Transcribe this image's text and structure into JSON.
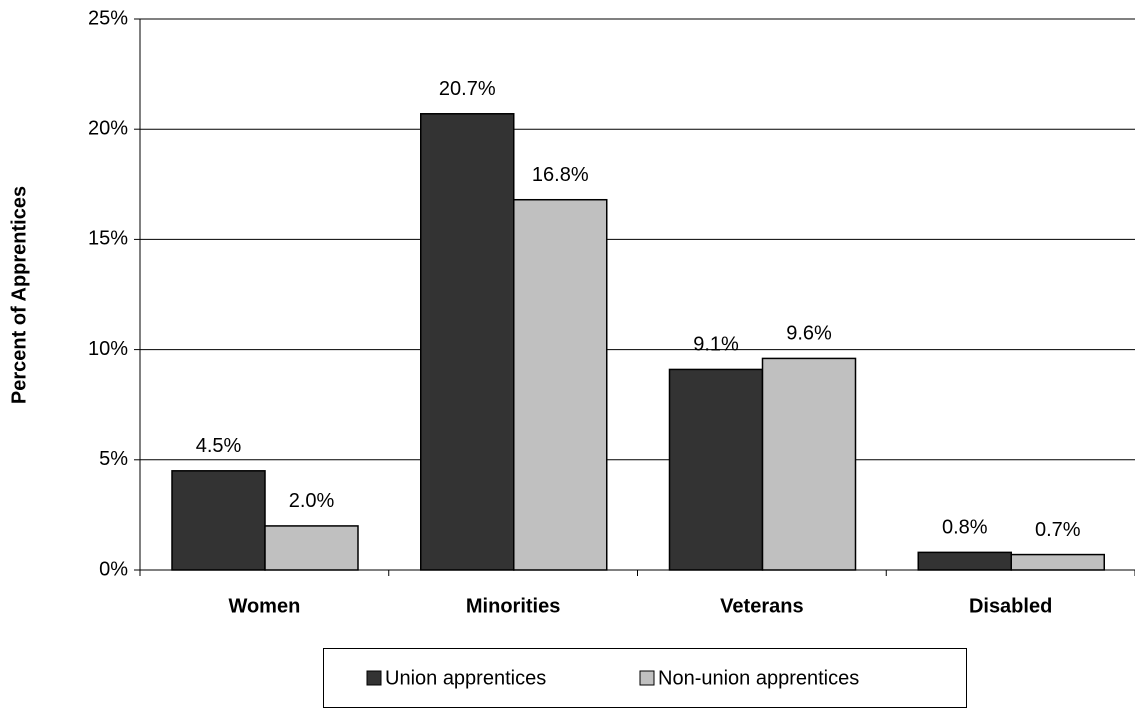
{
  "chart_data": {
    "type": "bar",
    "y_label": "Percent of Apprentices",
    "categories": [
      "Women",
      "Minorities",
      "Veterans",
      "Disabled"
    ],
    "series": [
      {
        "name": "Union apprentices",
        "color": "#333333",
        "values": [
          4.5,
          20.7,
          9.1,
          0.8
        ],
        "value_labels": [
          "4.5%",
          "20.7%",
          "9.1%",
          "0.8%"
        ]
      },
      {
        "name": "Non-union apprentices",
        "color": "#c0c0c0",
        "values": [
          2.0,
          16.8,
          9.6,
          0.7
        ],
        "value_labels": [
          "2.0%",
          "16.8%",
          "9.6%",
          "0.7%"
        ]
      }
    ],
    "ylim": [
      0,
      25
    ],
    "yticks": [
      {
        "value": 0,
        "label": "0%"
      },
      {
        "value": 5,
        "label": "5%"
      },
      {
        "value": 10,
        "label": "10%"
      },
      {
        "value": 15,
        "label": "15%"
      },
      {
        "value": 20,
        "label": "20%"
      },
      {
        "value": 25,
        "label": "25%"
      }
    ],
    "grid": true,
    "legend": "bottom"
  }
}
